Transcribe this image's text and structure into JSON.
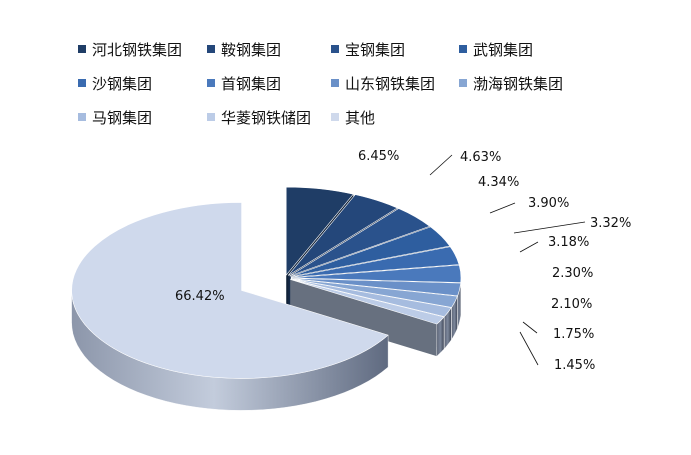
{
  "chart_data": {
    "type": "pie",
    "title": "",
    "legend_position": "top",
    "categories": [
      "河北钢铁集团",
      "鞍钢集团",
      "宝钢集团",
      "武钢集团",
      "沙钢集团",
      "首钢集团",
      "山东钢铁集团",
      "渤海钢铁集团",
      "马钢集团",
      "华菱钢铁储团",
      "其他"
    ],
    "values": [
      6.45,
      4.63,
      4.34,
      3.9,
      3.32,
      3.18,
      2.3,
      2.1,
      1.75,
      1.45,
      66.42
    ],
    "labels": [
      "6.45%",
      "4.63%",
      "4.34%",
      "3.90%",
      "3.32%",
      "3.18%",
      "2.30%",
      "2.10%",
      "1.75%",
      "1.45%",
      "66.42%"
    ],
    "colors": [
      "#1f3d66",
      "#24477a",
      "#2a528c",
      "#2e5e9f",
      "#3a6bb0",
      "#4a79bc",
      "#6a90c8",
      "#87a6d3",
      "#a6bcdf",
      "#bccce7",
      "#cfd9ec"
    ],
    "exploded_slice": "其他"
  }
}
